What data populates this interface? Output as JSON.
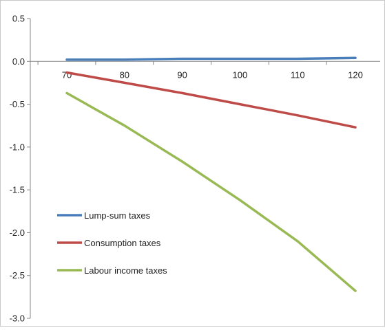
{
  "chart_data": {
    "type": "line",
    "title": "",
    "xlabel": "",
    "ylabel": "",
    "x": [
      70,
      80,
      90,
      100,
      110,
      120
    ],
    "x_tick_labels": [
      "70",
      "80",
      "90",
      "100",
      "110",
      "120"
    ],
    "y_tick_labels": [
      "0.5",
      "0.0",
      "-0.5",
      "-1.0",
      "-1.5",
      "-2.0",
      "-2.5",
      "-3.0"
    ],
    "y_tick_values": [
      0.5,
      0.0,
      -0.5,
      -1.0,
      -1.5,
      -2.0,
      -2.5,
      -3.0
    ],
    "xlim": [
      70,
      120
    ],
    "ylim": [
      -3.0,
      0.5
    ],
    "grid": false,
    "legend_position": "lower-left",
    "series": [
      {
        "name": "Lump-sum taxes",
        "color": "#4a7ebb",
        "values": [
          0.02,
          0.02,
          0.03,
          0.03,
          0.03,
          0.04
        ]
      },
      {
        "name": "Consumption taxes",
        "color": "#be4b48",
        "values": [
          -0.13,
          -0.25,
          -0.37,
          -0.5,
          -0.63,
          -0.77
        ]
      },
      {
        "name": "Labour income taxes",
        "color": "#98b954",
        "values": [
          -0.37,
          -0.75,
          -1.17,
          -1.62,
          -2.1,
          -2.68
        ]
      }
    ]
  }
}
